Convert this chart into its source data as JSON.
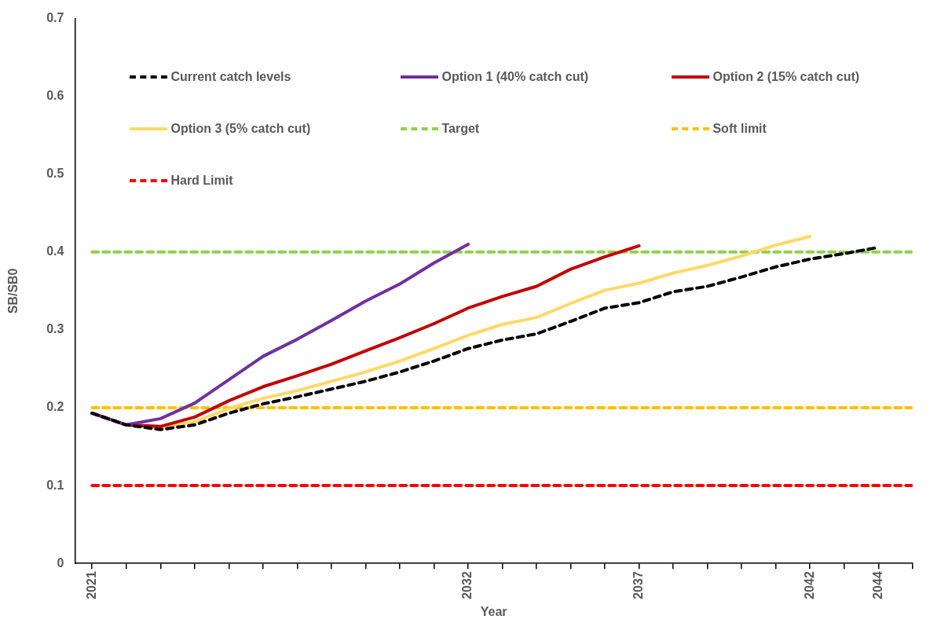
{
  "chart_data": {
    "type": "line",
    "xlabel": "Year",
    "ylabel": "SB/SB0",
    "legend": "top",
    "grid": false,
    "marker": "none",
    "xlim": [
      2020.5,
      2045
    ],
    "xticks": [
      2021,
      {
        "value": 2022,
        "label": null
      },
      {
        "value": 2023,
        "label": null
      },
      {
        "value": 2024,
        "label": null
      },
      {
        "value": 2025,
        "label": null
      },
      {
        "value": 2026,
        "label": null
      },
      {
        "value": 2027,
        "label": null
      },
      {
        "value": 2028,
        "label": null
      },
      {
        "value": 2029,
        "label": null
      },
      {
        "value": 2030,
        "label": null
      },
      {
        "value": 2031,
        "label": null
      },
      2032,
      {
        "value": 2033,
        "label": null
      },
      {
        "value": 2034,
        "label": null
      },
      {
        "value": 2035,
        "label": null
      },
      {
        "value": 2036,
        "label": null
      },
      2037,
      {
        "value": 2038,
        "label": null
      },
      {
        "value": 2039,
        "label": null
      },
      {
        "value": 2040,
        "label": null
      },
      {
        "value": 2041,
        "label": null
      },
      2042,
      {
        "value": 2043,
        "label": null
      },
      2044,
      {
        "value": 2045,
        "label": null
      }
    ],
    "ylim": [
      0,
      0.7
    ],
    "yticks": [
      0,
      0.1,
      0.2,
      0.3,
      0.4,
      0.5,
      0.6,
      0.7
    ],
    "series": [
      {
        "name": "Current catch levels",
        "color": "#000000",
        "line_style": "dashed",
        "x": [
          2021,
          2022,
          2023,
          2024,
          2025,
          2026,
          2027,
          2028,
          2029,
          2030,
          2031,
          2032,
          2033,
          2034,
          2035,
          2036,
          2037,
          2038,
          2039,
          2040,
          2041,
          2042,
          2043,
          2044
        ],
        "values": [
          0.193,
          0.178,
          0.172,
          0.178,
          0.193,
          0.205,
          0.214,
          0.224,
          0.234,
          0.246,
          0.26,
          0.276,
          0.287,
          0.295,
          0.311,
          0.328,
          0.335,
          0.349,
          0.356,
          0.368,
          0.381,
          0.391,
          0.398,
          0.406
        ]
      },
      {
        "name": "Option 1 (40% catch cut)",
        "color": "#7030a0",
        "line_style": "solid",
        "x": [
          2021,
          2022,
          2023,
          2024,
          2025,
          2026,
          2027,
          2028,
          2029,
          2030,
          2031,
          2032
        ],
        "values": [
          0.193,
          0.178,
          0.186,
          0.206,
          0.236,
          0.266,
          0.288,
          0.312,
          0.337,
          0.359,
          0.386,
          0.41
        ]
      },
      {
        "name": "Option 2 (15% catch cut)",
        "color": "#c00000",
        "line_style": "solid",
        "x": [
          2021,
          2022,
          2023,
          2024,
          2025,
          2026,
          2027,
          2028,
          2029,
          2030,
          2031,
          2032,
          2033,
          2034,
          2035,
          2036,
          2037
        ],
        "values": [
          0.193,
          0.178,
          0.176,
          0.188,
          0.209,
          0.227,
          0.241,
          0.256,
          0.273,
          0.29,
          0.308,
          0.328,
          0.343,
          0.356,
          0.378,
          0.394,
          0.408
        ]
      },
      {
        "name": "Option 3 (5% catch cut)",
        "color": "#ffd966",
        "line_style": "solid",
        "x": [
          2021,
          2022,
          2023,
          2024,
          2025,
          2026,
          2027,
          2028,
          2029,
          2030,
          2031,
          2032,
          2033,
          2034,
          2035,
          2036,
          2037,
          2038,
          2039,
          2040,
          2041,
          2042
        ],
        "values": [
          0.193,
          0.178,
          0.174,
          0.182,
          0.199,
          0.212,
          0.222,
          0.234,
          0.246,
          0.26,
          0.276,
          0.293,
          0.307,
          0.316,
          0.334,
          0.351,
          0.36,
          0.373,
          0.383,
          0.395,
          0.409,
          0.42
        ]
      },
      {
        "name": "Target",
        "color": "#92d050",
        "line_style": "dashed",
        "x": [
          2021,
          2045
        ],
        "values": [
          0.4,
          0.4
        ]
      },
      {
        "name": "Soft limit",
        "color": "#ffc000",
        "line_style": "dashed",
        "x": [
          2021,
          2045
        ],
        "values": [
          0.2,
          0.2
        ]
      },
      {
        "name": "Hard Limit",
        "color": "#ff0000",
        "line_style": "dashed",
        "x": [
          2021,
          2045
        ],
        "values": [
          0.1,
          0.1
        ]
      }
    ]
  }
}
